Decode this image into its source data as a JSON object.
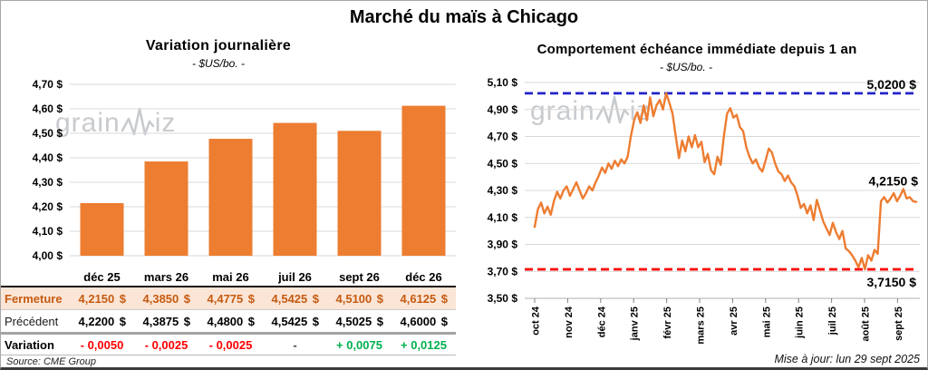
{
  "header": {
    "title": "Marché du maïs à Chicago"
  },
  "watermark": {
    "left_part": "grain",
    "right_part": "iz"
  },
  "left_table": {
    "columns": [
      "déc 25",
      "mars 26",
      "mai 26",
      "juil 26",
      "sept 26",
      "déc 26"
    ],
    "rows": [
      {
        "style": "fermeture",
        "label": "Fermeture",
        "currency": "$",
        "values": [
          "4,2150",
          "4,3850",
          "4,4775",
          "4,5425",
          "4,5100",
          "4,6125"
        ]
      },
      {
        "style": "precedent",
        "label": "Précédent",
        "currency": "$",
        "values": [
          "4,2200",
          "4,3875",
          "4,4800",
          "4,5425",
          "4,5025",
          "4,6000"
        ]
      },
      {
        "style": "variation",
        "label": "Variation",
        "values": [
          "- 0,0050",
          "- 0,0025",
          "- 0,0025",
          "-",
          "+ 0,0075",
          "+ 0,0125"
        ],
        "colors": [
          "red",
          "red",
          "red",
          "neutral",
          "green",
          "green"
        ]
      }
    ],
    "source": "Source: CME Group"
  },
  "right_panel": {
    "update_note": "Mise à jour: lun 29 sept 2025"
  },
  "colors": {
    "series_orange": "#ED7D31",
    "max_line_blue": "#2323C9",
    "min_line_red": "#FF0000",
    "fermeture_bg": "#FBE5D6",
    "fermeture_text": "#C55A11",
    "gridline": "#D9D9D9"
  },
  "chart_data": [
    {
      "type": "bar",
      "title": "Variation  journalière",
      "subtitle": "- $US/bo. -",
      "categories": [
        "déc 25",
        "mars 26",
        "mai 26",
        "juil 26",
        "sept 26",
        "déc 26"
      ],
      "values": [
        4.215,
        4.385,
        4.4775,
        4.5425,
        4.51,
        4.6125
      ],
      "ylim": [
        4.0,
        4.7
      ],
      "ytick_labels": [
        "4,00 $",
        "4,10 $",
        "4,20 $",
        "4,30 $",
        "4,40 $",
        "4,50 $",
        "4,60 $",
        "4,70 $"
      ],
      "bar_color": "#ED7D31",
      "grid": true,
      "legend": "none"
    },
    {
      "type": "line",
      "title": "Comportement  échéance immédiate  depuis 1 an",
      "subtitle": "- $US/bo. -",
      "x_categories": [
        "oct 24",
        "nov 24",
        "déc 24",
        "janv 25",
        "févr 25",
        "mars 25",
        "avr 25",
        "mai 25",
        "juin 25",
        "juil 25",
        "août 25",
        "sept 25"
      ],
      "values": [
        4.03,
        4.16,
        4.21,
        4.13,
        4.18,
        4.12,
        4.22,
        4.29,
        4.24,
        4.3,
        4.33,
        4.26,
        4.31,
        4.36,
        4.3,
        4.24,
        4.28,
        4.33,
        4.3,
        4.36,
        4.41,
        4.47,
        4.43,
        4.5,
        4.46,
        4.52,
        4.48,
        4.53,
        4.5,
        4.55,
        4.7,
        4.82,
        4.88,
        4.8,
        4.93,
        4.82,
        4.99,
        4.85,
        4.93,
        4.97,
        4.9,
        5.02,
        4.95,
        4.87,
        4.7,
        4.54,
        4.67,
        4.59,
        4.7,
        4.62,
        4.71,
        4.62,
        4.66,
        4.51,
        4.57,
        4.45,
        4.42,
        4.55,
        4.49,
        4.7,
        4.87,
        4.91,
        4.84,
        4.86,
        4.77,
        4.74,
        4.62,
        4.55,
        4.5,
        4.53,
        4.47,
        4.44,
        4.52,
        4.61,
        4.58,
        4.5,
        4.44,
        4.42,
        4.37,
        4.41,
        4.36,
        4.33,
        4.26,
        4.17,
        4.2,
        4.13,
        4.19,
        4.08,
        4.23,
        4.15,
        4.07,
        4.02,
        3.97,
        4.06,
        3.99,
        3.94,
        4.0,
        3.87,
        3.85,
        3.82,
        3.78,
        3.73,
        3.8,
        3.715,
        3.82,
        3.78,
        3.86,
        3.83,
        4.22,
        4.25,
        4.21,
        4.24,
        4.28,
        4.22,
        4.26,
        4.31,
        4.24,
        4.25,
        4.22,
        4.215
      ],
      "ylim": [
        3.5,
        5.1
      ],
      "ytick_labels": [
        "3,50 $",
        "3,70 $",
        "3,90 $",
        "4,10 $",
        "4,30 $",
        "4,50 $",
        "4,70 $",
        "4,90 $",
        "5,10 $"
      ],
      "line_color": "#ED7D31",
      "grid": true,
      "legend": "none",
      "ref_lines": [
        {
          "position": "max",
          "value": 5.02,
          "label": "5,0200 $",
          "color": "#2323C9",
          "style": "dashed"
        },
        {
          "position": "min",
          "value": 3.715,
          "label": "3,7150 $",
          "color": "#FF0000",
          "style": "dashed"
        }
      ],
      "last_value_label": {
        "text": "4,2150 $",
        "value": 4.215
      }
    }
  ]
}
